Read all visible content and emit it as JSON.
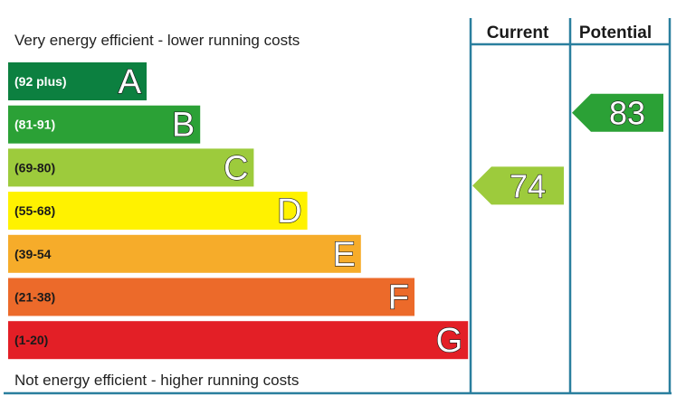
{
  "chart_data": {
    "type": "bar",
    "top_caption": "Very energy efficient - lower running costs",
    "bottom_caption": "Not energy efficient - higher running costs",
    "columns": [
      "Current",
      "Potential"
    ],
    "bands": [
      {
        "letter": "A",
        "range": "(92 plus)",
        "min": 92,
        "max": 100,
        "color": "#0c8040",
        "label_color": "#ffffff"
      },
      {
        "letter": "B",
        "range": "(81-91)",
        "min": 81,
        "max": 91,
        "color": "#2ba136",
        "label_color": "#ffffff"
      },
      {
        "letter": "C",
        "range": "(69-80)",
        "min": 69,
        "max": 80,
        "color": "#9dcb3c",
        "label_color": "#1a1a1a"
      },
      {
        "letter": "D",
        "range": "(55-68)",
        "min": 55,
        "max": 68,
        "color": "#fff200",
        "label_color": "#1a1a1a"
      },
      {
        "letter": "E",
        "range": "(39-54",
        "min": 39,
        "max": 54,
        "color": "#f6ac2a",
        "label_color": "#1a1a1a"
      },
      {
        "letter": "F",
        "range": "(21-38)",
        "min": 21,
        "max": 38,
        "color": "#ec6a2a",
        "label_color": "#1a1a1a"
      },
      {
        "letter": "G",
        "range": "(1-20)",
        "min": 1,
        "max": 20,
        "color": "#e31f26",
        "label_color": "#1a1a1a"
      }
    ],
    "ratings": [
      {
        "column": "Current",
        "value": 74,
        "band": "C",
        "color": "#9dcb3c"
      },
      {
        "column": "Potential",
        "value": 83,
        "band": "B",
        "color": "#2ba136"
      }
    ],
    "grid_color": "#2a7f9e"
  }
}
